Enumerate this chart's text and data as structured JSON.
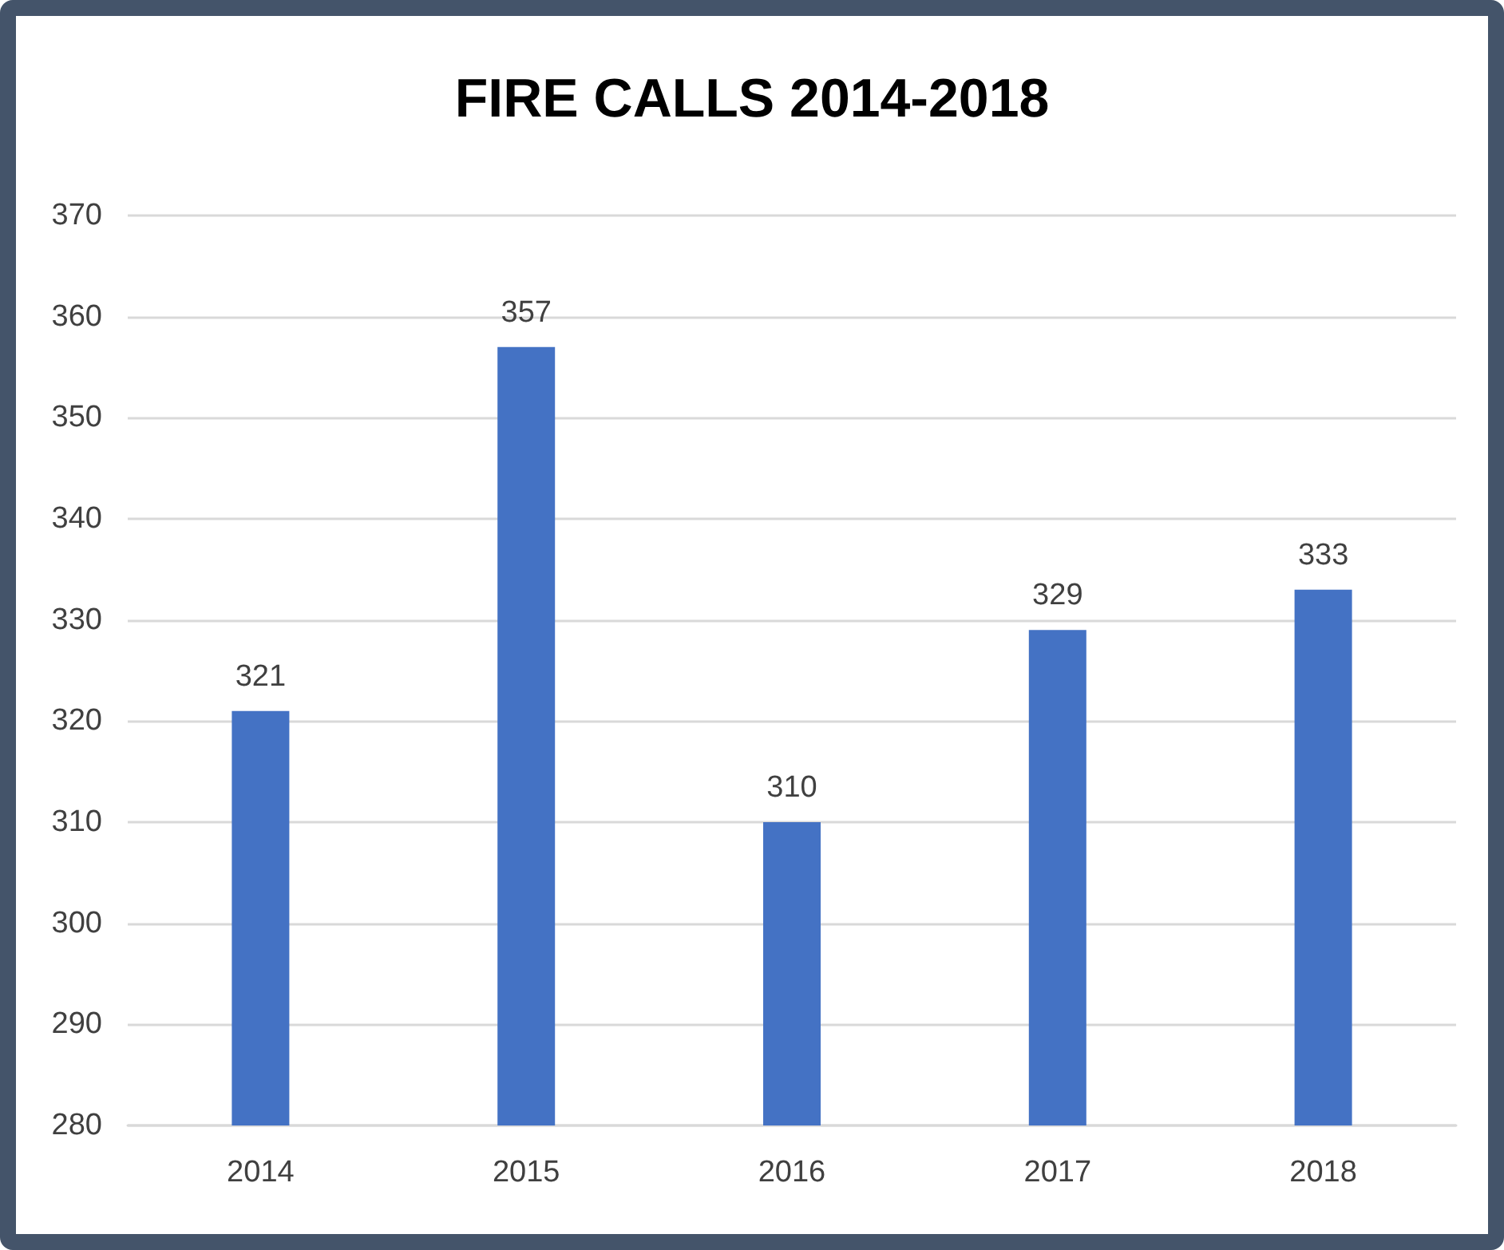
{
  "chart_data": {
    "type": "bar",
    "title": "FIRE CALLS 2014-2018",
    "categories": [
      "2014",
      "2015",
      "2016",
      "2017",
      "2018"
    ],
    "values": [
      321,
      357,
      310,
      329,
      333
    ],
    "color": "#4472c4",
    "ylim": [
      280,
      370
    ],
    "yticks": [
      280,
      290,
      300,
      310,
      320,
      330,
      340,
      350,
      360,
      370
    ],
    "grid": "y",
    "data_labels": true
  }
}
